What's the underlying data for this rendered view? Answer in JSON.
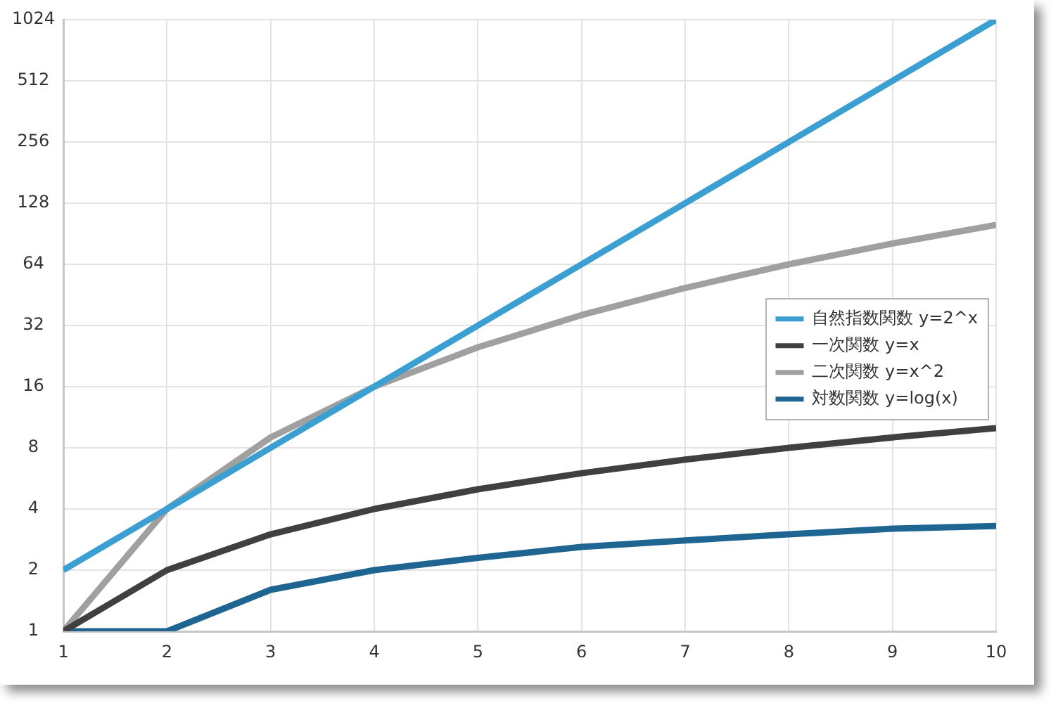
{
  "chart_data": {
    "type": "line",
    "x": [
      1,
      2,
      3,
      4,
      5,
      6,
      7,
      8,
      9,
      10
    ],
    "series": [
      {
        "name": "自然指数関数 y=2^x",
        "color": "#3b9fd1",
        "values": [
          2,
          4,
          8,
          16,
          32,
          64,
          128,
          256,
          512,
          1024
        ]
      },
      {
        "name": "一次関数 y=x",
        "color": "#404040",
        "values": [
          1,
          2,
          3,
          4,
          5,
          6,
          7,
          8,
          9,
          10
        ]
      },
      {
        "name": "二次関数 y=x^2",
        "color": "#a0a0a0",
        "values": [
          1,
          4,
          9,
          16,
          25,
          36,
          49,
          64,
          81,
          100
        ]
      },
      {
        "name": "対数関数 y=log(x)",
        "color": "#1f6592",
        "values": [
          1,
          1,
          1.6,
          2,
          2.3,
          2.6,
          2.8,
          3,
          3.2,
          3.3
        ]
      }
    ],
    "xlim": [
      1,
      10
    ],
    "xticks": [
      1,
      2,
      3,
      4,
      5,
      6,
      7,
      8,
      9,
      10
    ],
    "ylim": [
      1,
      1024
    ],
    "yticks": [
      1,
      2,
      4,
      8,
      16,
      32,
      64,
      128,
      256,
      512,
      1024
    ],
    "log": "y",
    "grid": true,
    "legend": "right",
    "marker": "none",
    "line_style": "solid"
  }
}
